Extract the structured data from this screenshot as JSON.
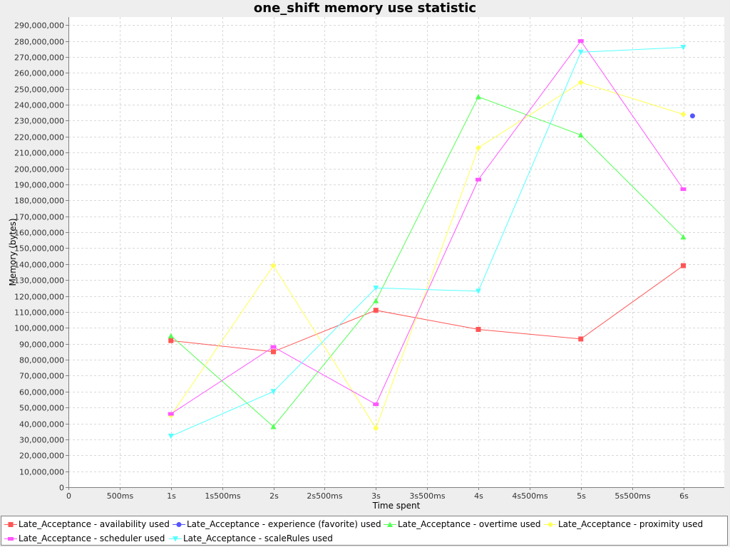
{
  "chart_data": {
    "type": "line",
    "title": "one_shift memory use statistic",
    "xlabel": "Time spent",
    "ylabel": "Memory (bytes)",
    "x_unit": "ms",
    "xlim": [
      0,
      6400
    ],
    "ylim": [
      0,
      295000000
    ],
    "x_ticks": [
      {
        "value": 0,
        "label": "0"
      },
      {
        "value": 500,
        "label": "500ms"
      },
      {
        "value": 1000,
        "label": "1s"
      },
      {
        "value": 1500,
        "label": "1s500ms"
      },
      {
        "value": 2000,
        "label": "2s"
      },
      {
        "value": 2500,
        "label": "2s500ms"
      },
      {
        "value": 3000,
        "label": "3s"
      },
      {
        "value": 3500,
        "label": "3s500ms"
      },
      {
        "value": 4000,
        "label": "4s"
      },
      {
        "value": 4500,
        "label": "4s500ms"
      },
      {
        "value": 5000,
        "label": "5s"
      },
      {
        "value": 5500,
        "label": "5s500ms"
      },
      {
        "value": 6000,
        "label": "6s"
      }
    ],
    "y_ticks": [
      {
        "value": 0,
        "label": "0"
      },
      {
        "value": 10000000,
        "label": "10,000,000"
      },
      {
        "value": 20000000,
        "label": "20,000,000"
      },
      {
        "value": 30000000,
        "label": "30,000,000"
      },
      {
        "value": 40000000,
        "label": "40,000,000"
      },
      {
        "value": 50000000,
        "label": "50,000,000"
      },
      {
        "value": 60000000,
        "label": "60,000,000"
      },
      {
        "value": 70000000,
        "label": "70,000,000"
      },
      {
        "value": 80000000,
        "label": "80,000,000"
      },
      {
        "value": 90000000,
        "label": "90,000,000"
      },
      {
        "value": 100000000,
        "label": "100,000,000"
      },
      {
        "value": 110000000,
        "label": "110,000,000"
      },
      {
        "value": 120000000,
        "label": "120,000,000"
      },
      {
        "value": 130000000,
        "label": "130,000,000"
      },
      {
        "value": 140000000,
        "label": "140,000,000"
      },
      {
        "value": 150000000,
        "label": "150,000,000"
      },
      {
        "value": 160000000,
        "label": "160,000,000"
      },
      {
        "value": 170000000,
        "label": "170,000,000"
      },
      {
        "value": 180000000,
        "label": "180,000,000"
      },
      {
        "value": 190000000,
        "label": "190,000,000"
      },
      {
        "value": 200000000,
        "label": "200,000,000"
      },
      {
        "value": 210000000,
        "label": "210,000,000"
      },
      {
        "value": 220000000,
        "label": "220,000,000"
      },
      {
        "value": 230000000,
        "label": "230,000,000"
      },
      {
        "value": 240000000,
        "label": "240,000,000"
      },
      {
        "value": 250000000,
        "label": "250,000,000"
      },
      {
        "value": 260000000,
        "label": "260,000,000"
      },
      {
        "value": 270000000,
        "label": "270,000,000"
      },
      {
        "value": 280000000,
        "label": "280,000,000"
      },
      {
        "value": 290000000,
        "label": "290,000,000"
      }
    ],
    "grid": true,
    "legend_position": "bottom",
    "series": [
      {
        "name": "Late_Acceptance - availability used",
        "color": "#ff5555",
        "marker": "square",
        "points": [
          [
            1000,
            92000000
          ],
          [
            2000,
            85000000
          ],
          [
            3000,
            111000000
          ],
          [
            4000,
            99000000
          ],
          [
            5000,
            93000000
          ],
          [
            6000,
            139000000
          ]
        ]
      },
      {
        "name": "Late_Acceptance - experience (favorite) used",
        "color": "#5555ff",
        "marker": "circle",
        "points": [
          [
            6090,
            233000000
          ]
        ]
      },
      {
        "name": "Late_Acceptance - overtime used",
        "color": "#55ff55",
        "marker": "triangle-up",
        "points": [
          [
            1000,
            95000000
          ],
          [
            2000,
            38000000
          ],
          [
            3000,
            117000000
          ],
          [
            4000,
            245000000
          ],
          [
            5000,
            221000000
          ],
          [
            6000,
            157000000
          ]
        ]
      },
      {
        "name": "Late_Acceptance - proximity used",
        "color": "#ffff55",
        "marker": "diamond",
        "points": [
          [
            1000,
            45000000
          ],
          [
            2000,
            139000000
          ],
          [
            3000,
            37000000
          ],
          [
            4000,
            213000000
          ],
          [
            5000,
            254000000
          ],
          [
            6000,
            234000000
          ]
        ]
      },
      {
        "name": "Late_Acceptance - scheduler used",
        "color": "#ff55ff",
        "marker": "rect-wide",
        "points": [
          [
            1000,
            46000000
          ],
          [
            2000,
            88000000
          ],
          [
            3000,
            52000000
          ],
          [
            4000,
            193000000
          ],
          [
            5000,
            280000000
          ],
          [
            6000,
            187000000
          ]
        ]
      },
      {
        "name": "Late_Acceptance - scaleRules used",
        "color": "#55ffff",
        "marker": "triangle-down",
        "points": [
          [
            1000,
            32000000
          ],
          [
            2000,
            60000000
          ],
          [
            3000,
            125000000
          ],
          [
            4000,
            123000000
          ],
          [
            5000,
            273000000
          ],
          [
            6000,
            276000000
          ]
        ]
      }
    ]
  }
}
